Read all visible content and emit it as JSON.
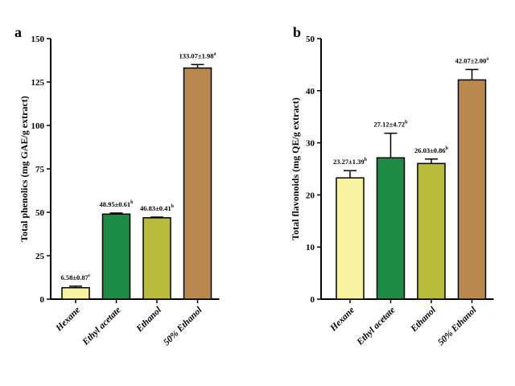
{
  "chart_data": [
    {
      "type": "bar",
      "panel_letter": "a",
      "ylabel": "Total phenolics (mg GAE/g extract)",
      "categories": [
        "Hexane",
        "Ethyl acetate",
        "Ethanol",
        "50% Ethanol"
      ],
      "values": [
        6.58,
        48.95,
        46.83,
        133.07
      ],
      "errors": [
        0.87,
        0.61,
        0.41,
        1.98
      ],
      "value_labels": [
        "6.58±0.87",
        "48.95±0.61",
        "46.83±0.41",
        "133.07±1.98"
      ],
      "significance": [
        "c",
        "b",
        "b",
        "a"
      ],
      "ylim": [
        0,
        150
      ],
      "yticks": [
        0,
        25,
        50,
        75,
        100,
        125,
        150
      ],
      "bar_colors": [
        "#f7f3a0",
        "#1d8a45",
        "#b8bc3a",
        "#b8884f"
      ],
      "grid": false
    },
    {
      "type": "bar",
      "panel_letter": "b",
      "ylabel": "Total flavonoids (mg QE/g extract)",
      "categories": [
        "Hexane",
        "Ethyl acetate",
        "Ethanol",
        "50% Ethanol"
      ],
      "values": [
        23.27,
        27.12,
        26.03,
        42.07
      ],
      "errors": [
        1.39,
        4.72,
        0.86,
        2.0
      ],
      "value_labels": [
        "23.27±1.39",
        "27.12±4.72",
        "26.03±0.86",
        "42.07±2.00"
      ],
      "significance": [
        "b",
        "b",
        "b",
        "a"
      ],
      "ylim": [
        0,
        50
      ],
      "yticks": [
        0,
        10,
        20,
        30,
        40,
        50
      ],
      "bar_colors": [
        "#f7f3a0",
        "#1d8a45",
        "#b8bc3a",
        "#b8884f"
      ],
      "grid": false
    }
  ]
}
